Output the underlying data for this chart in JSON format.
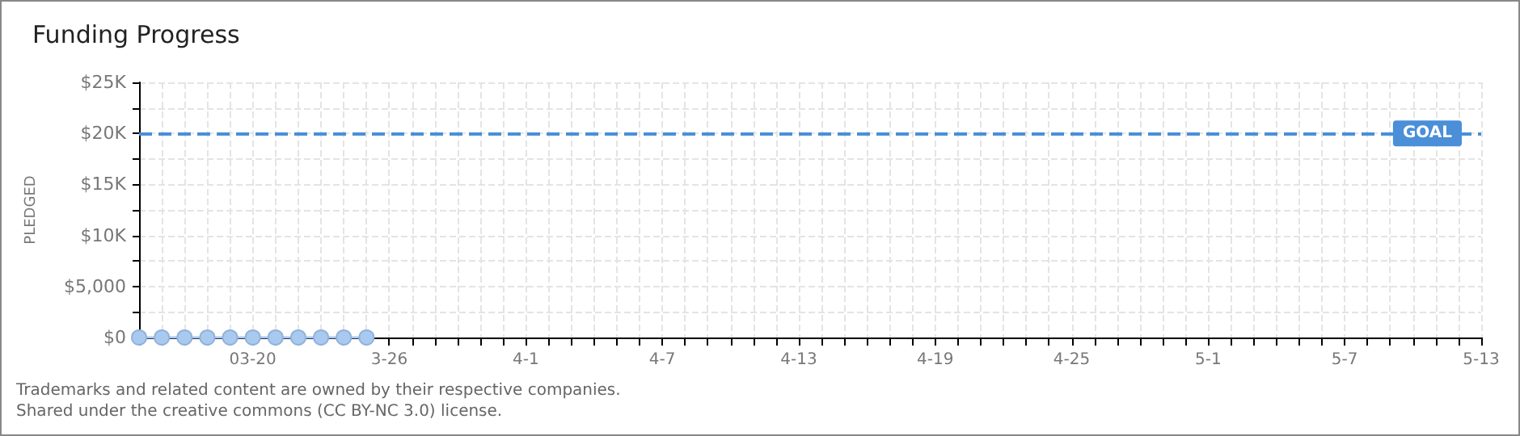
{
  "chart_data": {
    "type": "line",
    "title": "Funding Progress",
    "ylabel": "PLEDGED",
    "x": [
      "--03-15",
      "--03-16",
      "--03-17",
      "--03-18",
      "--03-19",
      "--03-20",
      "--03-21",
      "--03-22",
      "--03-23",
      "--03-24",
      "--03-25"
    ],
    "series": [
      {
        "color": "#a9c9ee",
        "values": [
          0,
          0,
          0,
          0,
          0,
          0,
          0,
          0,
          0,
          0,
          0
        ]
      }
    ],
    "xlim": [
      "--03-15",
      "--05-13"
    ],
    "xticks": [
      {
        "value": "--03-15",
        "label": null
      },
      {
        "value": "--03-16",
        "label": null
      },
      {
        "value": "--03-17",
        "label": null
      },
      {
        "value": "--03-18",
        "label": null
      },
      {
        "value": "--03-19",
        "label": null
      },
      {
        "value": "--03-20",
        "label": "03-20"
      },
      {
        "value": "--03-21",
        "label": null
      },
      {
        "value": "--03-22",
        "label": null
      },
      {
        "value": "--03-23",
        "label": null
      },
      {
        "value": "--03-24",
        "label": null
      },
      {
        "value": "--03-25",
        "label": null
      },
      {
        "value": "--03-26",
        "label": "3-26"
      },
      {
        "value": "--03-27",
        "label": null
      },
      {
        "value": "--03-28",
        "label": null
      },
      {
        "value": "--03-29",
        "label": null
      },
      {
        "value": "--03-30",
        "label": null
      },
      {
        "value": "--03-31",
        "label": null
      },
      {
        "value": "--04-01",
        "label": "4-1"
      },
      {
        "value": "--04-02",
        "label": null
      },
      {
        "value": "--04-03",
        "label": null
      },
      {
        "value": "--04-04",
        "label": null
      },
      {
        "value": "--04-05",
        "label": null
      },
      {
        "value": "--04-06",
        "label": null
      },
      {
        "value": "--04-07",
        "label": "4-7"
      },
      {
        "value": "--04-08",
        "label": null
      },
      {
        "value": "--04-09",
        "label": null
      },
      {
        "value": "--04-10",
        "label": null
      },
      {
        "value": "--04-11",
        "label": null
      },
      {
        "value": "--04-12",
        "label": null
      },
      {
        "value": "--04-13",
        "label": "4-13"
      },
      {
        "value": "--04-14",
        "label": null
      },
      {
        "value": "--04-15",
        "label": null
      },
      {
        "value": "--04-16",
        "label": null
      },
      {
        "value": "--04-17",
        "label": null
      },
      {
        "value": "--04-18",
        "label": null
      },
      {
        "value": "--04-19",
        "label": "4-19"
      },
      {
        "value": "--04-20",
        "label": null
      },
      {
        "value": "--04-21",
        "label": null
      },
      {
        "value": "--04-22",
        "label": null
      },
      {
        "value": "--04-23",
        "label": null
      },
      {
        "value": "--04-24",
        "label": null
      },
      {
        "value": "--04-25",
        "label": "4-25"
      },
      {
        "value": "--04-26",
        "label": null
      },
      {
        "value": "--04-27",
        "label": null
      },
      {
        "value": "--04-28",
        "label": null
      },
      {
        "value": "--04-29",
        "label": null
      },
      {
        "value": "--04-30",
        "label": null
      },
      {
        "value": "--05-01",
        "label": "5-1"
      },
      {
        "value": "--05-02",
        "label": null
      },
      {
        "value": "--05-03",
        "label": null
      },
      {
        "value": "--05-04",
        "label": null
      },
      {
        "value": "--05-05",
        "label": null
      },
      {
        "value": "--05-06",
        "label": null
      },
      {
        "value": "--05-07",
        "label": "5-7"
      },
      {
        "value": "--05-08",
        "label": null
      },
      {
        "value": "--05-09",
        "label": null
      },
      {
        "value": "--05-10",
        "label": null
      },
      {
        "value": "--05-11",
        "label": null
      },
      {
        "value": "--05-12",
        "label": null
      },
      {
        "value": "--05-13",
        "label": "5-13"
      }
    ],
    "ylim": [
      0,
      25000
    ],
    "yticks": [
      {
        "value": 0,
        "label": "$0"
      },
      {
        "value": 2500,
        "label": null
      },
      {
        "value": 5000,
        "label": "$5,000"
      },
      {
        "value": 7500,
        "label": null
      },
      {
        "value": 10000,
        "label": "$10K"
      },
      {
        "value": 12500,
        "label": null
      },
      {
        "value": 15000,
        "label": "$15K"
      },
      {
        "value": 17500,
        "label": null
      },
      {
        "value": 20000,
        "label": "$20K"
      },
      {
        "value": 22500,
        "label": null
      },
      {
        "value": 25000,
        "label": "$25K"
      }
    ],
    "ref_lines": [
      {
        "axis": "y",
        "value": 20000,
        "label": "GOAL",
        "color": "#4a8fd8",
        "line_style": "dashed"
      }
    ],
    "grid": true,
    "marker": "circle",
    "line_style": "solid",
    "annotations": [
      "Trademarks and related content are owned by their respective companies.",
      "Shared under the creative commons (CC BY-NC 3.0) license."
    ]
  }
}
